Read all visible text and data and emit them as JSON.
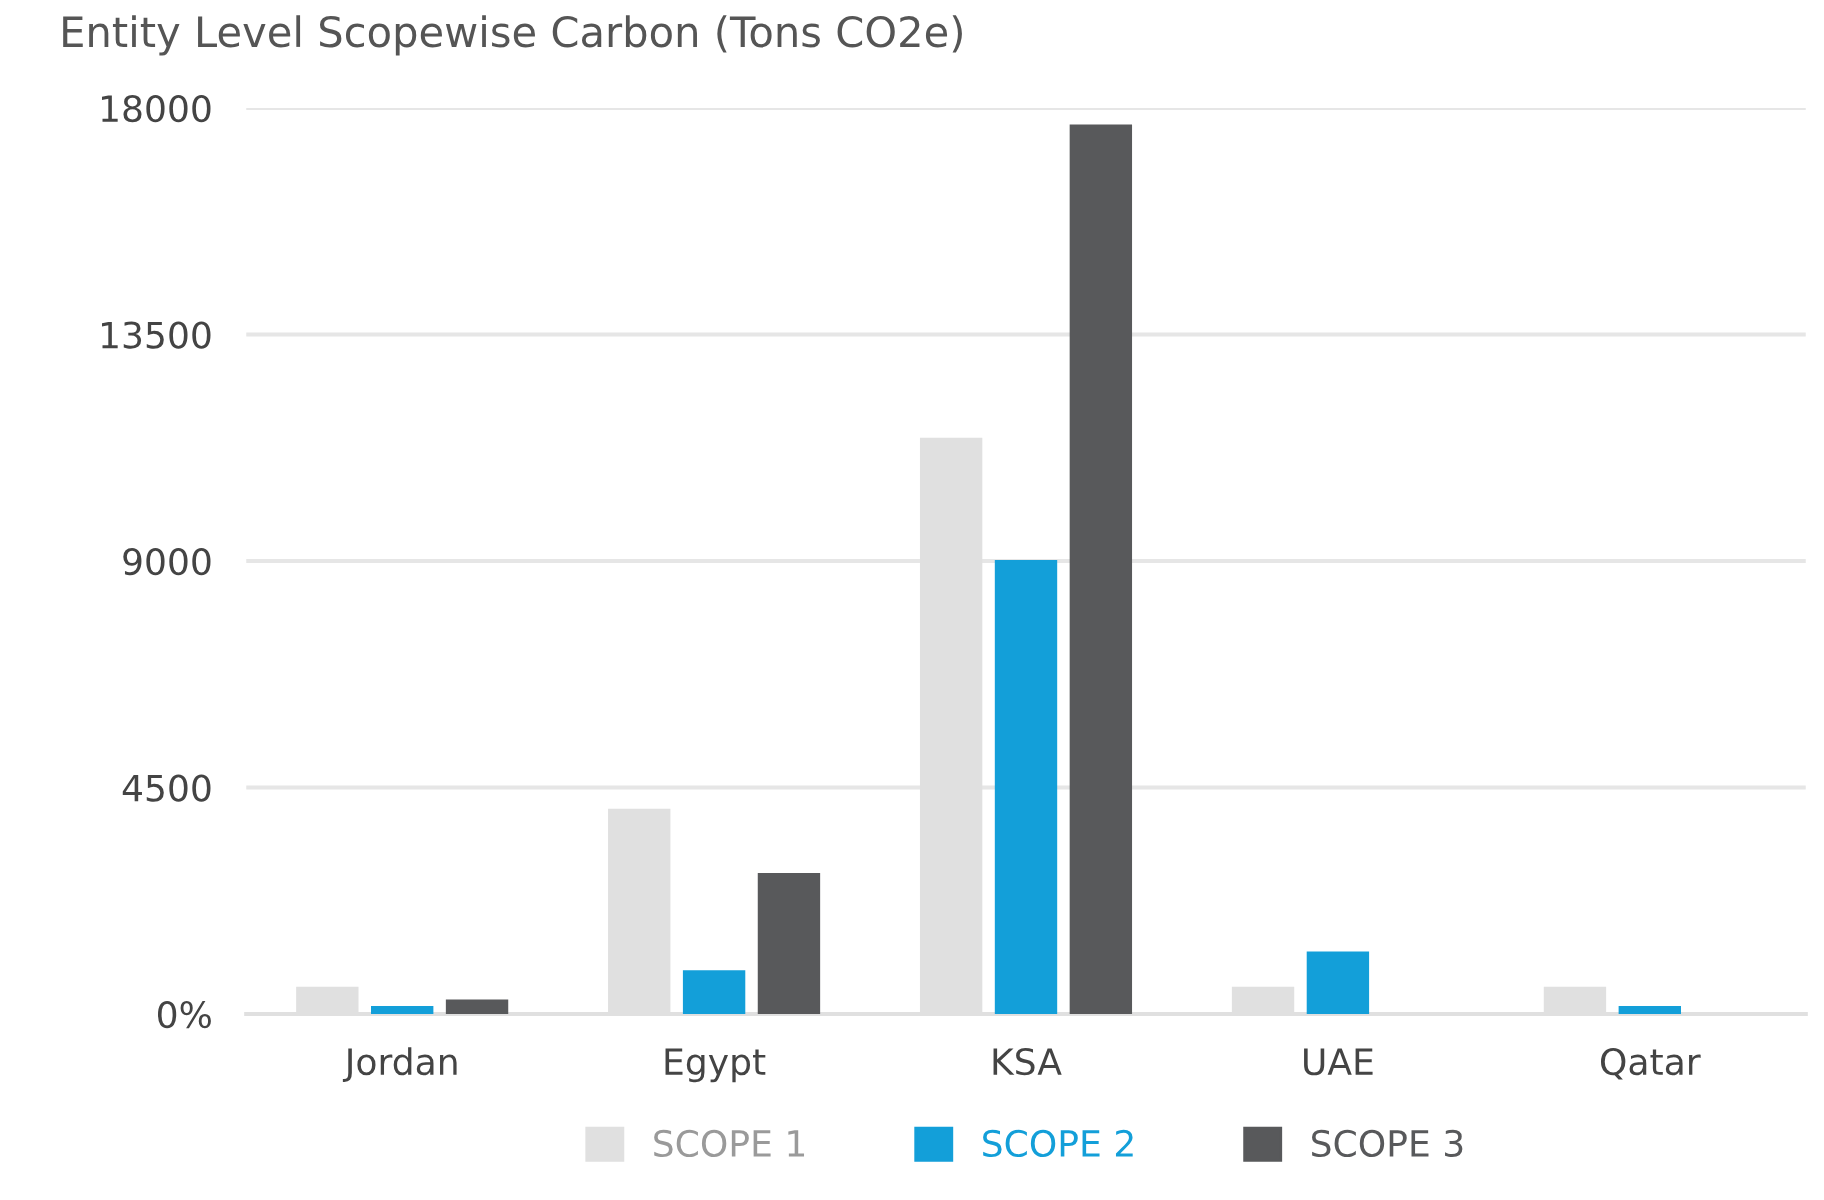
{
  "chart_data": {
    "type": "bar",
    "title": "Entity Level Scopewise Carbon (Tons CO2e)",
    "categories": [
      "Jordan",
      "Egypt",
      "KSA",
      "UAE",
      "Qatar"
    ],
    "series": [
      {
        "name": "SCOPE 1",
        "color": "#e0e0e0",
        "values": [
          540,
          4080,
          11450,
          540,
          540
        ]
      },
      {
        "name": "SCOPE 2",
        "color": "#139fd9",
        "values": [
          160,
          870,
          9020,
          1240,
          160
        ]
      },
      {
        "name": "SCOPE 3",
        "color": "#58595b",
        "values": [
          290,
          2800,
          17670,
          0,
          0
        ]
      }
    ],
    "ylim": [
      0,
      18000
    ],
    "yticks": [
      {
        "value": 0,
        "label": "0%"
      },
      4500,
      9000,
      13500,
      18000
    ],
    "grid": "y",
    "legend": "bottom"
  }
}
